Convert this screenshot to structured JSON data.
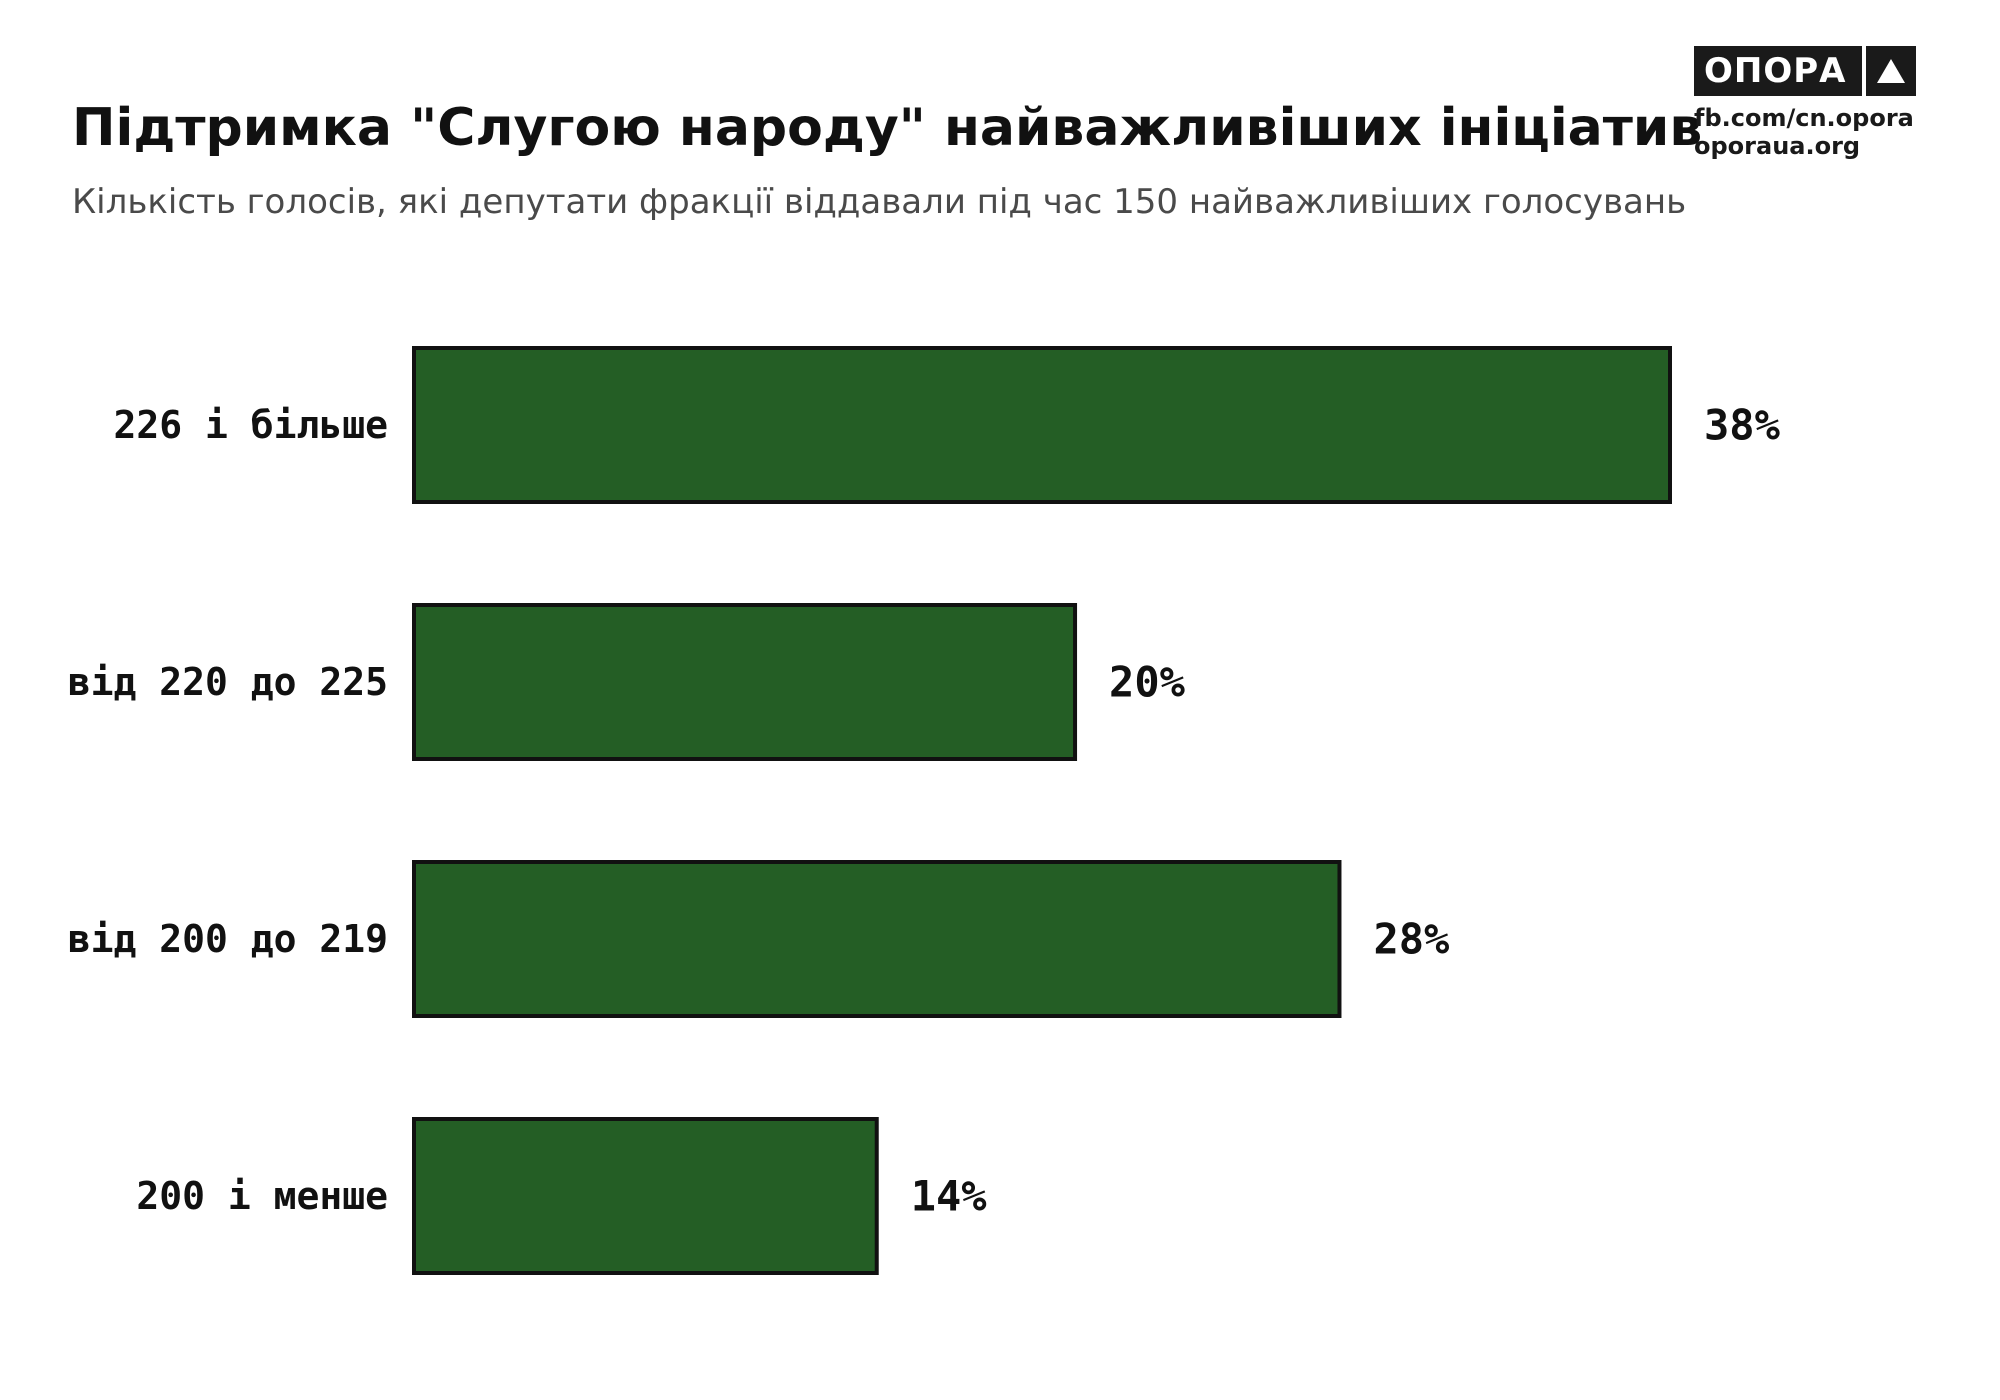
{
  "title": "Підтримка \"Слугою народу\" найважливіших ініціатив",
  "subtitle": "Кількість голосів, які депутати фракції віддавали під час 150 найважливіших голосувань",
  "logo": {
    "name": "ОПОРА",
    "mark_icon": "triangle-icon",
    "line1": "fb.com/cn.opora",
    "line2": "oporaua.org"
  },
  "colors": {
    "bar_fill": "#245E25",
    "bar_stroke": "#111111"
  },
  "chart_data": {
    "type": "bar",
    "orientation": "horizontal",
    "title": "Підтримка \"Слугою народу\" найважливіших ініціатив",
    "subtitle": "Кількість голосів, які депутати фракції віддавали під час 150 найважливіших голосувань",
    "categories": [
      "226 і більше",
      "від 220 до 225",
      "від 200 до 219",
      "200 і менше"
    ],
    "values": [
      38,
      20,
      28,
      14
    ],
    "value_labels": [
      "38%",
      "20%",
      "28%",
      "14%"
    ],
    "unit": "%",
    "xlim": [
      0,
      38
    ],
    "grid": false,
    "legend": "none"
  }
}
